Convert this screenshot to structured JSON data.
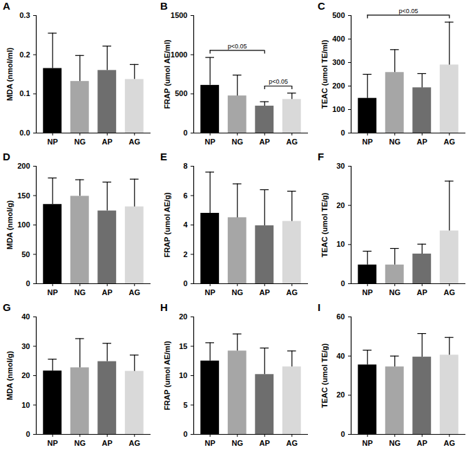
{
  "chart_data": [
    {
      "type": "bar",
      "title": "A",
      "y_label": "MDA (nmol/ml)",
      "categories": [
        "NP",
        "NG",
        "AP",
        "AG"
      ],
      "values": [
        0.165,
        0.132,
        0.16,
        0.137
      ],
      "errors": [
        0.09,
        0.066,
        0.062,
        0.038
      ],
      "colors": [
        "#000000",
        "#a6a6a6",
        "#6e6e6e",
        "#d9d9d9"
      ],
      "ylim": [
        0,
        0.3
      ],
      "yticks": [
        {
          "value": 0,
          "label": "0.0"
        },
        {
          "value": 0.1,
          "label": "0.1"
        },
        {
          "value": 0.2,
          "label": "0.2"
        },
        {
          "value": 0.3,
          "label": "0.3"
        }
      ],
      "annotations": []
    },
    {
      "type": "bar",
      "title": "B",
      "y_label": "FRAP (umol AE/ml)",
      "categories": [
        "NP",
        "NG",
        "AP",
        "AG"
      ],
      "values": [
        610,
        475,
        345,
        430
      ],
      "errors": [
        355,
        265,
        55,
        80
      ],
      "colors": [
        "#000000",
        "#a6a6a6",
        "#6e6e6e",
        "#d9d9d9"
      ],
      "ylim": [
        0,
        1500
      ],
      "yticks": [
        0,
        500,
        1000,
        1500
      ],
      "annotations": [
        {
          "from": "NP",
          "to": "AP",
          "text": "p<0.05"
        },
        {
          "from": "AP",
          "to": "AG",
          "text": "p<0.05"
        }
      ]
    },
    {
      "type": "bar",
      "title": "C",
      "y_label": "TEAC (umol TE/ml)",
      "categories": [
        "NP",
        "NG",
        "AP",
        "AG"
      ],
      "values": [
        148,
        258,
        193,
        290
      ],
      "errors": [
        102,
        97,
        60,
        182
      ],
      "colors": [
        "#000000",
        "#a6a6a6",
        "#6e6e6e",
        "#d9d9d9"
      ],
      "ylim": [
        0,
        500
      ],
      "yticks": [
        0,
        100,
        200,
        300,
        400,
        500
      ],
      "annotations": [
        {
          "from": "NP",
          "to": "AG",
          "text": "p<0.05"
        }
      ]
    },
    {
      "type": "bar",
      "title": "D",
      "y_label": "MDA (nmol/g)",
      "categories": [
        "NP",
        "NG",
        "AP",
        "AG"
      ],
      "values": [
        135,
        149,
        124,
        131
      ],
      "errors": [
        45,
        28,
        49,
        47
      ],
      "colors": [
        "#000000",
        "#a6a6a6",
        "#6e6e6e",
        "#d9d9d9"
      ],
      "ylim": [
        0,
        200
      ],
      "yticks": [
        0,
        50,
        100,
        150,
        200
      ],
      "annotations": []
    },
    {
      "type": "bar",
      "title": "E",
      "y_label": "FRAP (umol AE/g)",
      "categories": [
        "NP",
        "NG",
        "AP",
        "AG"
      ],
      "values": [
        4.8,
        4.5,
        3.95,
        4.25
      ],
      "errors": [
        2.8,
        2.3,
        2.45,
        2.05
      ],
      "colors": [
        "#000000",
        "#a6a6a6",
        "#6e6e6e",
        "#d9d9d9"
      ],
      "ylim": [
        0,
        8
      ],
      "yticks": [
        0,
        2,
        4,
        6,
        8
      ],
      "annotations": []
    },
    {
      "type": "bar",
      "title": "F",
      "y_label": "TEAC (umol TE/g)",
      "categories": [
        "NP",
        "NG",
        "AP",
        "AG"
      ],
      "values": [
        4.8,
        4.8,
        7.6,
        13.5
      ],
      "errors": [
        3.5,
        4.2,
        2.5,
        12.7
      ],
      "colors": [
        "#000000",
        "#a6a6a6",
        "#6e6e6e",
        "#d9d9d9"
      ],
      "ylim": [
        0,
        30
      ],
      "yticks": [
        0,
        10,
        20,
        30
      ],
      "annotations": []
    },
    {
      "type": "bar",
      "title": "G",
      "y_label": "MDA (nmol/g)",
      "categories": [
        "NP",
        "NG",
        "AP",
        "AG"
      ],
      "values": [
        21.6,
        22.7,
        24.8,
        21.5
      ],
      "errors": [
        4.0,
        9.9,
        6.2,
        5.5
      ],
      "colors": [
        "#000000",
        "#a6a6a6",
        "#6e6e6e",
        "#d9d9d9"
      ],
      "ylim": [
        0,
        40
      ],
      "yticks": [
        0,
        10,
        20,
        30,
        40
      ],
      "annotations": []
    },
    {
      "type": "bar",
      "title": "H",
      "y_label": "FRAP (umol AE/ml)",
      "categories": [
        "NP",
        "NG",
        "AP",
        "AG"
      ],
      "values": [
        12.5,
        14.2,
        10.2,
        11.5
      ],
      "errors": [
        3.1,
        2.9,
        4.5,
        2.7
      ],
      "colors": [
        "#000000",
        "#a6a6a6",
        "#6e6e6e",
        "#d9d9d9"
      ],
      "ylim": [
        0,
        20
      ],
      "yticks": [
        0,
        5,
        10,
        15,
        20
      ],
      "annotations": []
    },
    {
      "type": "bar",
      "title": "I",
      "y_label": "TEAC (umol TE/g)",
      "categories": [
        "NP",
        "NG",
        "AP",
        "AG"
      ],
      "values": [
        35.5,
        34.5,
        39.5,
        40.5
      ],
      "errors": [
        7.5,
        5.5,
        12,
        9
      ],
      "colors": [
        "#000000",
        "#a6a6a6",
        "#6e6e6e",
        "#d9d9d9"
      ],
      "ylim": [
        0,
        60
      ],
      "yticks": [
        0,
        20,
        40,
        60
      ],
      "annotations": []
    }
  ]
}
